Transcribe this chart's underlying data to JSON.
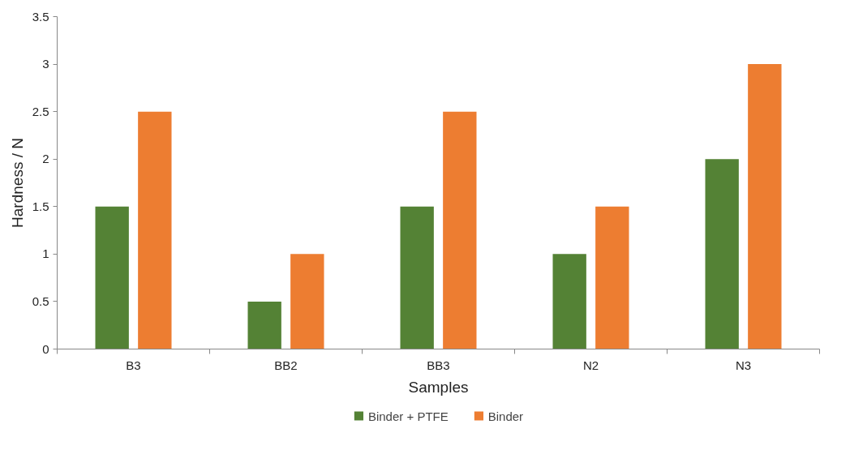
{
  "chart_data": {
    "type": "bar",
    "xlabel": "Samples",
    "ylabel": "Hardness / N",
    "categories": [
      "B3",
      "BB2",
      "BB3",
      "N2",
      "N3"
    ],
    "series": [
      {
        "name": "Binder + PTFE",
        "color": "#548235",
        "values": [
          1.5,
          0.5,
          1.5,
          1,
          2
        ]
      },
      {
        "name": "Binder",
        "color": "#ed7d31",
        "values": [
          2.5,
          1,
          2.5,
          1.5,
          3
        ]
      }
    ],
    "ylim": [
      0,
      3.5
    ],
    "yticks": [
      0,
      0.5,
      1,
      1.5,
      2,
      2.5,
      3,
      3.5
    ],
    "grid": false,
    "legend": "bottom"
  }
}
